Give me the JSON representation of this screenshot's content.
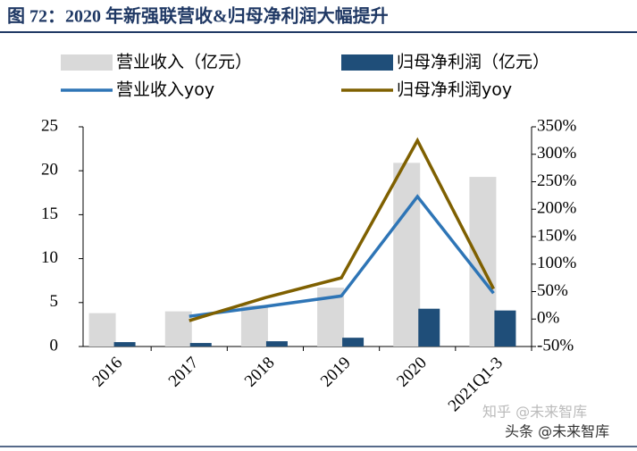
{
  "chart_data": {
    "type": "bar_line",
    "title": "图 72：2020 年新强联营收&归母净利润大幅提升",
    "categories": [
      "2016",
      "2017",
      "2018",
      "2019",
      "2020",
      "2021Q1-3"
    ],
    "series": [
      {
        "name": "营业收入（亿元）",
        "color": "#d9d9d9",
        "kind": "bar",
        "values": [
          3.8,
          4.0,
          4.7,
          6.7,
          20.9,
          19.3
        ]
      },
      {
        "name": "归母净利润（亿元）",
        "color": "#1f4e79",
        "kind": "bar",
        "values": [
          0.5,
          0.4,
          0.6,
          1.0,
          4.3,
          4.1
        ]
      },
      {
        "name": "营业收入yoy",
        "color": "#2e75b6",
        "kind": "line",
        "axis": "y2",
        "values": [
          null,
          5,
          23,
          42,
          223,
          47
        ]
      },
      {
        "name": "归母净利润yoy",
        "color": "#7f6000",
        "kind": "line",
        "axis": "y2",
        "values": [
          null,
          -3,
          39,
          75,
          325,
          55
        ]
      }
    ],
    "ylim": [
      0,
      25
    ],
    "yticks": [
      0,
      5,
      10,
      15,
      20,
      25
    ],
    "y2lim": [
      -50,
      350
    ],
    "y2ticks": [
      {
        "value": -50,
        "label": "-50%"
      },
      {
        "value": 0,
        "label": "0%"
      },
      {
        "value": 50,
        "label": "50%"
      },
      {
        "value": 100,
        "label": "100%"
      },
      {
        "value": 150,
        "label": "150%"
      },
      {
        "value": 200,
        "label": "200%"
      },
      {
        "value": 250,
        "label": "250%"
      },
      {
        "value": 300,
        "label": "300%"
      },
      {
        "value": 350,
        "label": "350%"
      }
    ],
    "watermarks": [
      "知乎 @未来智库",
      "头条 @未来智库"
    ]
  }
}
